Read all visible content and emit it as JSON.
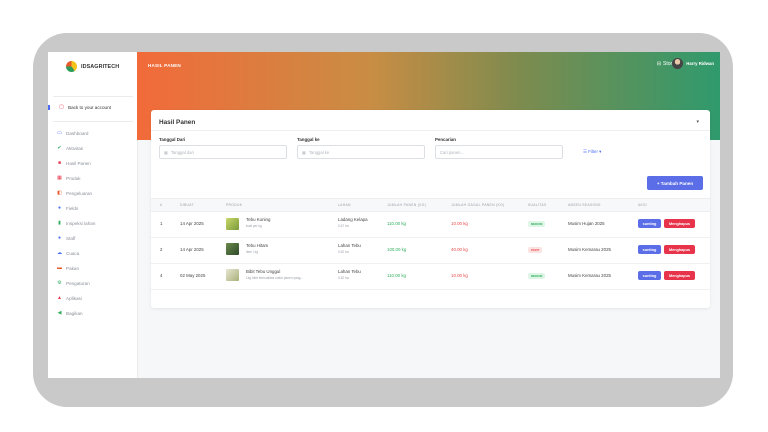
{
  "app": {
    "logo_text": "IDSAGRITECH"
  },
  "sidebar": {
    "back_label": "Back to your account",
    "items": [
      {
        "label": "Dashboard",
        "icon": "monitor-icon",
        "color": "#4a6cf7"
      },
      {
        "label": "Aktivitas",
        "icon": "activity-icon",
        "color": "#2fae5e"
      },
      {
        "label": "Hasil Panen",
        "icon": "harvest-icon",
        "color": "#e8344a"
      },
      {
        "label": "Produk",
        "icon": "product-icon",
        "color": "#e8344a"
      },
      {
        "label": "Pengeluaran",
        "icon": "expense-icon",
        "color": "#e85a2a"
      },
      {
        "label": "Fields",
        "icon": "map-pin-icon",
        "color": "#4a6cf7"
      },
      {
        "label": "Inspeksi lahan",
        "icon": "inspection-icon",
        "color": "#2fae5e"
      },
      {
        "label": "Staff",
        "icon": "user-icon",
        "color": "#4a6cf7"
      },
      {
        "label": "Cuaca",
        "icon": "weather-icon",
        "color": "#4a6cf7"
      },
      {
        "label": "Pakan",
        "icon": "feed-icon",
        "color": "#e85a2a"
      },
      {
        "label": "Pengaturan",
        "icon": "settings-icon",
        "color": "#2fae5e"
      },
      {
        "label": "Aplikasi",
        "icon": "app-icon",
        "color": "#e8344a"
      },
      {
        "label": "Bagikan",
        "icon": "share-icon",
        "color": "#2fae5e"
      }
    ]
  },
  "header": {
    "title": "HASIL PANEN",
    "store_label": "Store",
    "user_name": "Harry Ridwan"
  },
  "card": {
    "title": "Hasil Panen",
    "filters": {
      "date_from_label": "Tanggal Dari",
      "date_from_placeholder": "Tanggal dari",
      "date_to_label": "Tanggal ke",
      "date_to_placeholder": "Tanggal ke",
      "search_label": "Pencarian",
      "search_placeholder": "Cari panen...",
      "filter_label": "Filter"
    },
    "add_button": "+ Tambah Panen"
  },
  "table": {
    "columns": [
      "#",
      "DIBUAT",
      "PRODUK",
      "LAHAN",
      "JUMLAH PANEN (KG)",
      "JUMLAH GAGAL PANEN (KG)",
      "KUALITAS",
      "ABSEN SEASONS",
      "AKSI"
    ],
    "rows": [
      {
        "no": "1",
        "date": "14 Apr 2025",
        "product": "Tebu Kuning",
        "product_sub": "kuat per kg",
        "field": "Ladang Kelapa",
        "field_sub": "0.67 ha",
        "harvest": "110.00 kg",
        "failed": "10.00 kg",
        "quality": "MEDIUM",
        "season": "Musim Hujan 2025",
        "edit": "sunting",
        "delete": "Menghapus"
      },
      {
        "no": "2",
        "date": "14 Apr 2025",
        "product": "Tebu Hitam",
        "product_sub": "item / kg",
        "field": "Lahan Tebu",
        "field_sub": "0.52 ha",
        "harvest": "100.00 kg",
        "failed": "40.00 kg",
        "quality": "PARIT",
        "season": "Musim Kemarau 2025",
        "edit": "sunting",
        "delete": "Menghapus"
      },
      {
        "no": "4",
        "date": "02 May 2025",
        "product": "Bibit Tebu Unggul",
        "product_sub": "1kg bibit berkualitas untuk panen yang...",
        "field": "Lahan Tebu",
        "field_sub": "0.52 ha",
        "harvest": "110.00 kg",
        "failed": "10.00 kg",
        "quality": "MEDIUM",
        "season": "Musim Kemarau 2025",
        "edit": "sunting",
        "delete": "Menghapus"
      }
    ]
  }
}
